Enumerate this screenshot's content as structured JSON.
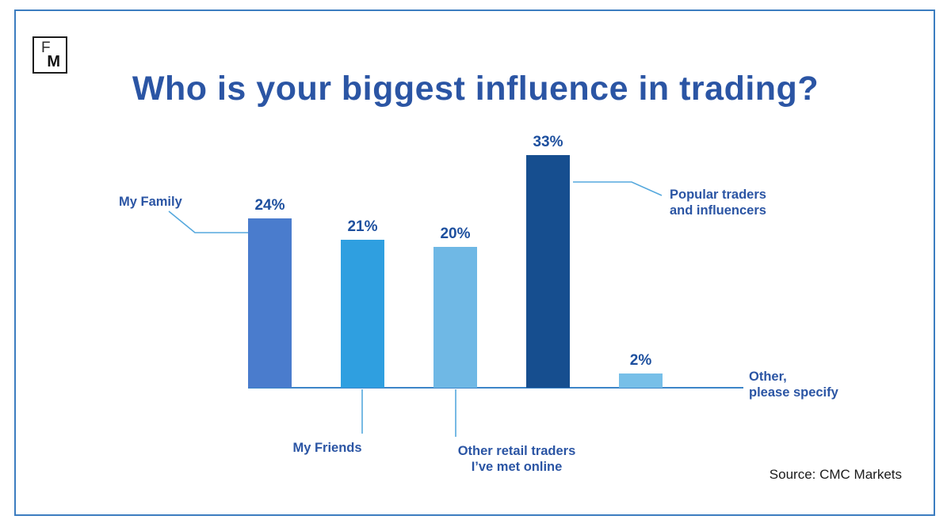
{
  "logo": {
    "top": "F",
    "bottom": "M"
  },
  "title": "Who is your biggest influence in trading?",
  "source": "Source: CMC Markets",
  "colors": {
    "frame": "#3c7dc0",
    "title": "#2b55a4",
    "label": "#2b55a4",
    "value": "#1d4f9e",
    "axis": "#3c85c8",
    "connector": "#55a8dd"
  },
  "chart_data": {
    "type": "bar",
    "categories": [
      "My Family",
      "My Friends",
      "Other retail traders I’ve met online",
      "Popular traders and influencers",
      "Other, please specify"
    ],
    "values": [
      24,
      21,
      20,
      33,
      2
    ],
    "value_labels": [
      "24%",
      "21%",
      "20%",
      "33%",
      "2%"
    ],
    "bar_colors": [
      "#4a7ccd",
      "#2f9fe0",
      "#6fb8e5",
      "#164e8f",
      "#77bfe8"
    ],
    "title": "Who is your biggest influence in trading?",
    "xlabel": "",
    "ylabel": "",
    "ylim": [
      0,
      35
    ],
    "grid": false,
    "legend": false,
    "labels_as_callouts": true,
    "source": "Source: CMC Markets"
  },
  "callouts": {
    "family": "My Family",
    "friends": "My Friends",
    "retail_line1": "Other retail traders",
    "retail_line2": "I’ve met online",
    "popular_line1": "Popular traders",
    "popular_line2": "and influencers",
    "other_line1": "Other,",
    "other_line2": "please specify"
  }
}
